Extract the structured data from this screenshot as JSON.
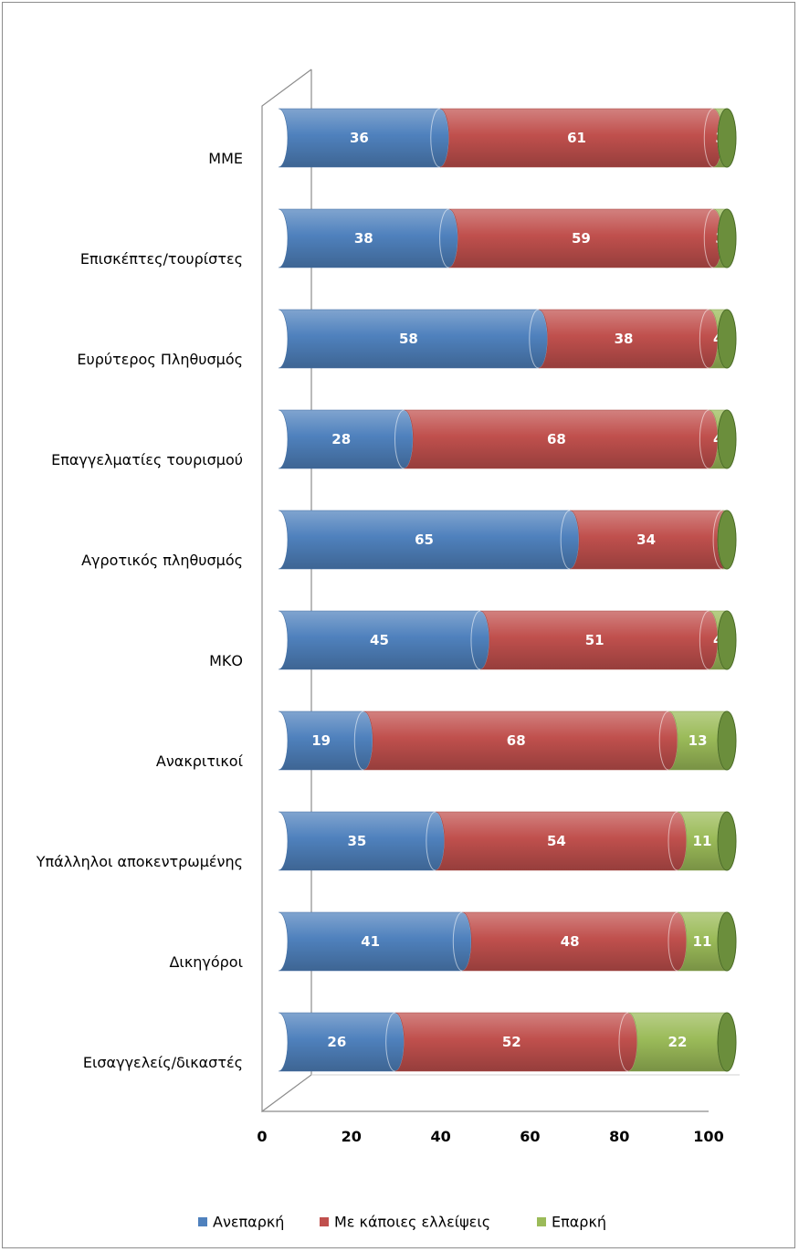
{
  "chart_data": {
    "type": "bar",
    "orientation": "horizontal",
    "stacked": true,
    "categories": [
      "ΜΜΕ",
      "Επισκέπτες/τουρίστες",
      "Ευρύτερος Πληθυσμός",
      "Επαγγελματίες τουρισμού",
      "Αγροτικός πληθυσμός",
      "ΜΚΟ",
      "Ανακριτικοί",
      "Υπάλληλοι αποκεντρωμένης",
      "Δικηγόροι",
      "Εισαγγελείς/δικαστές"
    ],
    "series": [
      {
        "name": "Ανεπαρκή",
        "color": "#4f81bd",
        "values": [
          36,
          38,
          58,
          28,
          65,
          45,
          19,
          35,
          41,
          26
        ]
      },
      {
        "name": "Με κάποιες ελλείψεις",
        "color": "#c0504d",
        "values": [
          61,
          59,
          38,
          68,
          34,
          51,
          68,
          54,
          48,
          52
        ]
      },
      {
        "name": "Επαρκή",
        "color": "#9bbb59",
        "values": [
          3,
          3,
          4,
          4,
          1,
          4,
          13,
          11,
          11,
          22
        ]
      }
    ],
    "xlim": [
      0,
      100
    ],
    "xticks": [
      "0",
      "20",
      "40",
      "60",
      "80",
      "100"
    ],
    "legend_position": "bottom",
    "grid": false,
    "data_labels": true,
    "three_d": true
  }
}
